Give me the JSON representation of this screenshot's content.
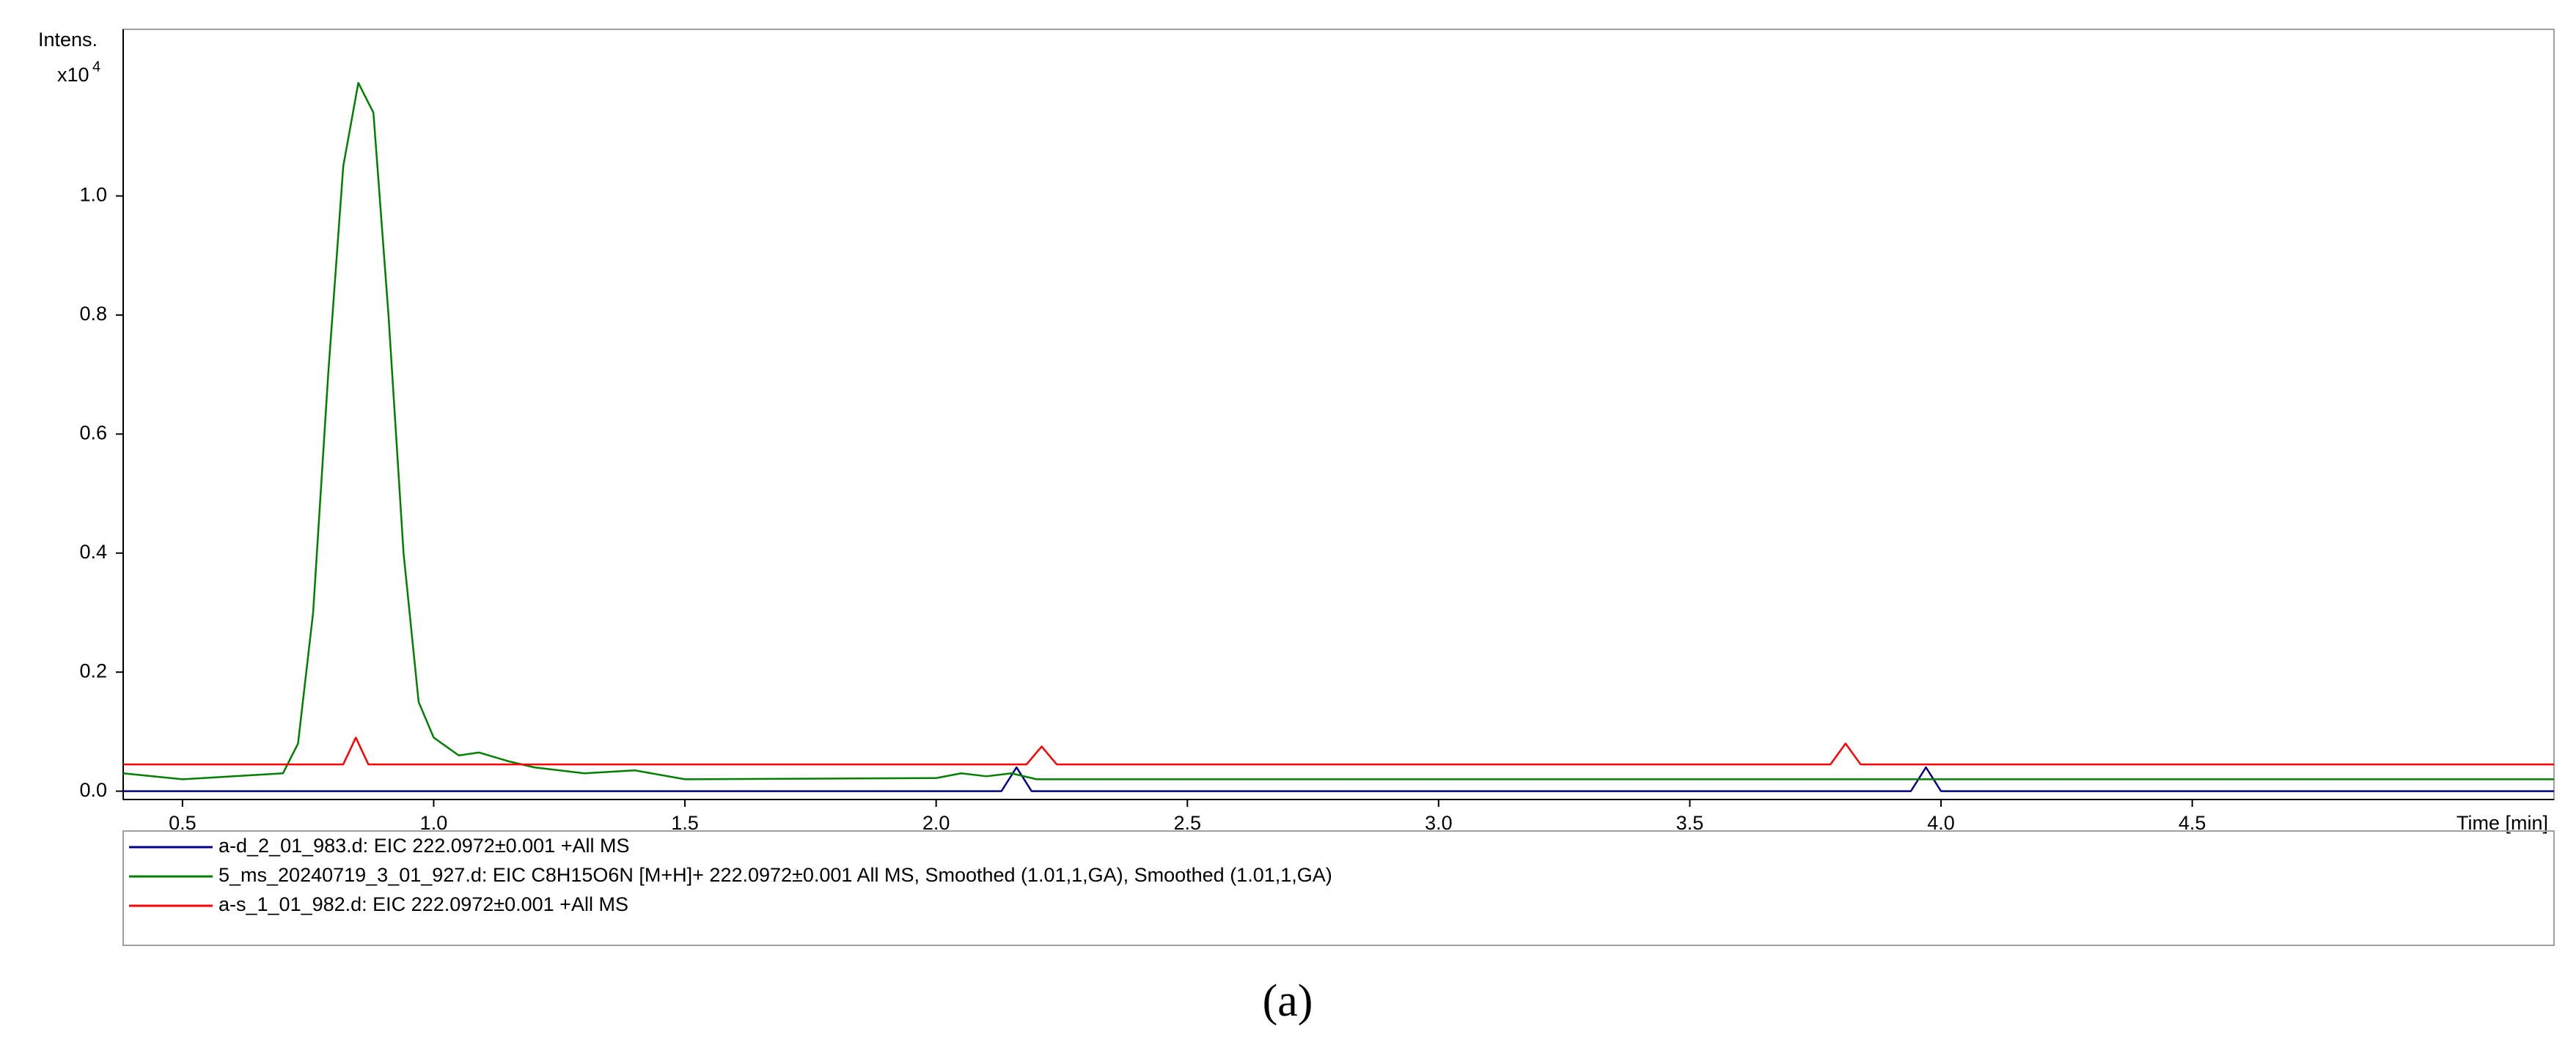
{
  "chart_data": {
    "type": "line",
    "y_label": "Intens.",
    "y_multiplier": "x10",
    "y_multiplier_exponent": "4",
    "x_label": "Time [min]",
    "caption": "(a)",
    "xlim": [
      0.382,
      5.22
    ],
    "ylim": [
      -0.014,
      1.28
    ],
    "xticks": [
      0.5,
      {
        "value": 1.0,
        "label": "1.0"
      },
      1.5,
      {
        "value": 2.0,
        "label": "2.0"
      },
      2.5,
      {
        "value": 3.0,
        "label": "3.0"
      },
      3.5,
      {
        "value": 4.0,
        "label": "4.0"
      },
      4.5
    ],
    "yticks": [
      {
        "value": 0.0,
        "label": "0.0"
      },
      0.2,
      0.4,
      0.6,
      0.8,
      {
        "value": 1.0,
        "label": "1.0"
      }
    ],
    "legend": "bottom",
    "series": [
      {
        "name": "a-d_2_01_983.d: EIC 222.0972±0.001 +All MS",
        "color": "#00008b",
        "x": [
          0.382,
          2.13,
          2.16,
          2.19,
          3.94,
          3.97,
          4.0,
          5.22
        ],
        "values": [
          0.0,
          0.0,
          0.04,
          0.0,
          0.0,
          0.04,
          0.0,
          0.0
        ]
      },
      {
        "name": "5_ms_20240719_3_01_927.d: EIC C8H15O6N [M+H]+ 222.0972±0.001 All MS, Smoothed (1.01,1,GA), Smoothed (1.01,1,GA)",
        "color": "#008000",
        "x": [
          0.382,
          0.5,
          0.7,
          0.73,
          0.76,
          0.79,
          0.82,
          0.85,
          0.88,
          0.91,
          0.94,
          0.97,
          1.0,
          1.05,
          1.09,
          1.15,
          1.2,
          1.3,
          1.4,
          1.5,
          2.0,
          2.05,
          2.1,
          2.15,
          2.2,
          5.22
        ],
        "values": [
          0.03,
          0.02,
          0.03,
          0.08,
          0.3,
          0.7,
          1.05,
          1.19,
          1.14,
          0.8,
          0.4,
          0.15,
          0.09,
          0.06,
          0.065,
          0.05,
          0.04,
          0.03,
          0.035,
          0.02,
          0.022,
          0.03,
          0.025,
          0.03,
          0.02,
          0.02
        ]
      },
      {
        "name": "a-s_1_01_982.d: EIC 222.0972±0.001 +All MS",
        "color": "#ff0000",
        "x": [
          0.382,
          0.82,
          0.845,
          0.87,
          2.18,
          2.21,
          2.24,
          3.78,
          3.81,
          3.84,
          5.22
        ],
        "values": [
          0.045,
          0.045,
          0.09,
          0.045,
          0.045,
          0.075,
          0.045,
          0.045,
          0.08,
          0.045,
          0.045
        ]
      }
    ]
  }
}
